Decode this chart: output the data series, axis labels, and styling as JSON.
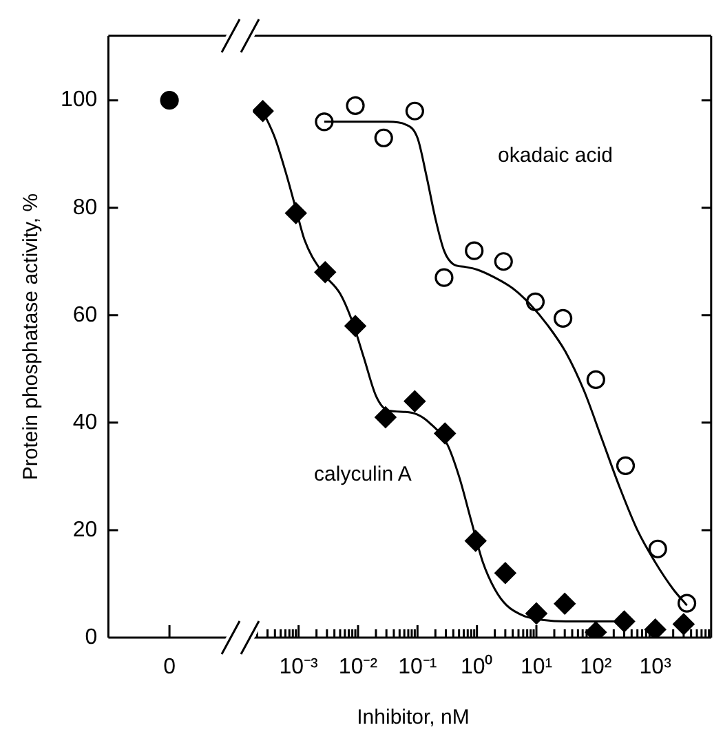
{
  "chart_data": [
    {
      "type": "scatter",
      "categories": [
        "0"
      ],
      "values": [
        100
      ],
      "color": "#000000",
      "marker": "circle",
      "ylabel": "Protein phosphatase activity, %",
      "ylim": [
        0,
        112
      ],
      "yticks": [
        0,
        20,
        40,
        60,
        80,
        100
      ],
      "grid": false,
      "legend": false
    },
    {
      "type": "scatter",
      "tick_labels": "x",
      "xlabel": "Inhibitor, nM",
      "log": "x",
      "grid": false,
      "legend": false,
      "xlim": [
        0.00017,
        8700
      ],
      "ylim": [
        0,
        112
      ],
      "yticks": [
        {
          "value": 0,
          "label": null
        },
        {
          "value": 20,
          "label": null
        },
        {
          "value": 40,
          "label": null
        },
        {
          "value": 60,
          "label": null
        },
        {
          "value": 80,
          "label": null
        },
        {
          "value": 100,
          "label": null
        }
      ],
      "xticks": [
        {
          "value": 0.0002,
          "label": null
        },
        {
          "value": 0.0003,
          "label": null
        },
        {
          "value": 0.0004,
          "label": null
        },
        {
          "value": 0.0005,
          "label": null
        },
        {
          "value": 0.0006,
          "label": null
        },
        {
          "value": 0.0007,
          "label": null
        },
        {
          "value": 0.0008,
          "label": null
        },
        {
          "value": 0.0009,
          "label": null
        },
        {
          "value": 0.001,
          "label": "10⁻³"
        },
        {
          "value": 0.002,
          "label": null
        },
        {
          "value": 0.003,
          "label": null
        },
        {
          "value": 0.004,
          "label": null
        },
        {
          "value": 0.005,
          "label": null
        },
        {
          "value": 0.006,
          "label": null
        },
        {
          "value": 0.007,
          "label": null
        },
        {
          "value": 0.008,
          "label": null
        },
        {
          "value": 0.009,
          "label": null
        },
        {
          "value": 0.01,
          "label": "10⁻²"
        },
        {
          "value": 0.02,
          "label": null
        },
        {
          "value": 0.03,
          "label": null
        },
        {
          "value": 0.04,
          "label": null
        },
        {
          "value": 0.05,
          "label": null
        },
        {
          "value": 0.06,
          "label": null
        },
        {
          "value": 0.07,
          "label": null
        },
        {
          "value": 0.08,
          "label": null
        },
        {
          "value": 0.09,
          "label": null
        },
        {
          "value": 0.1,
          "label": "10⁻¹"
        },
        {
          "value": 0.2,
          "label": null
        },
        {
          "value": 0.3,
          "label": null
        },
        {
          "value": 0.4,
          "label": null
        },
        {
          "value": 0.5,
          "label": null
        },
        {
          "value": 0.6,
          "label": null
        },
        {
          "value": 0.7,
          "label": null
        },
        {
          "value": 0.8,
          "label": null
        },
        {
          "value": 0.9,
          "label": null
        },
        {
          "value": 1,
          "label": "10⁰"
        },
        {
          "value": 2,
          "label": null
        },
        {
          "value": 3,
          "label": null
        },
        {
          "value": 4,
          "label": null
        },
        {
          "value": 5,
          "label": null
        },
        {
          "value": 6,
          "label": null
        },
        {
          "value": 7,
          "label": null
        },
        {
          "value": 8,
          "label": null
        },
        {
          "value": 9,
          "label": null
        },
        {
          "value": 10,
          "label": "10¹"
        },
        {
          "value": 20,
          "label": null
        },
        {
          "value": 30,
          "label": null
        },
        {
          "value": 40,
          "label": null
        },
        {
          "value": 50,
          "label": null
        },
        {
          "value": 60,
          "label": null
        },
        {
          "value": 70,
          "label": null
        },
        {
          "value": 80,
          "label": null
        },
        {
          "value": 90,
          "label": null
        },
        {
          "value": 100,
          "label": "10²"
        },
        {
          "value": 200,
          "label": null
        },
        {
          "value": 300,
          "label": null
        },
        {
          "value": 400,
          "label": null
        },
        {
          "value": 500,
          "label": null
        },
        {
          "value": 600,
          "label": null
        },
        {
          "value": 700,
          "label": null
        },
        {
          "value": 800,
          "label": null
        },
        {
          "value": 900,
          "label": null
        },
        {
          "value": 1000,
          "label": "10³"
        },
        {
          "value": 2000,
          "label": null
        },
        {
          "value": 3000,
          "label": null
        },
        {
          "value": 4000,
          "label": null
        },
        {
          "value": 5000,
          "label": null
        },
        {
          "value": 6000,
          "label": null
        },
        {
          "value": 7000,
          "label": null
        },
        {
          "value": 8000,
          "label": null
        }
      ],
      "series": [
        {
          "type": "line",
          "marker": "none",
          "color": "#000000",
          "x": [
            0.00025,
            0.0004,
            0.00063,
            0.00089,
            0.00126,
            0.0025,
            0.005,
            0.0079,
            0.0126,
            0.02,
            0.0316,
            0.063,
            0.1,
            0.158,
            0.316,
            0.5,
            0.79,
            1.26,
            2,
            3.16,
            6.3,
            12.6,
            31.6,
            100,
            316
          ],
          "values": [
            98,
            93,
            86,
            80,
            74,
            68,
            64,
            59,
            52,
            45,
            42.3,
            42,
            41.5,
            40,
            36,
            30,
            22,
            14,
            9,
            6,
            4,
            3.3,
            3,
            3,
            3
          ]
        },
        {
          "type": "line",
          "marker": "none",
          "color": "#000000",
          "x": [
            0.0027,
            0.01,
            0.0316,
            0.063,
            0.1,
            0.141,
            0.2,
            0.28,
            0.4,
            0.63,
            1,
            2,
            4,
            7.9,
            15.8,
            31.6,
            63,
            126,
            251,
            500,
            1000,
            2000,
            3400
          ],
          "values": [
            96,
            96,
            96,
            95.5,
            93,
            86,
            78,
            72,
            69.5,
            69,
            68.5,
            67,
            65,
            62,
            58,
            53,
            46,
            37,
            28,
            20,
            14,
            9,
            6
          ]
        },
        {
          "marker": "diamond",
          "color": "#000000",
          "x": [
            0.00025,
            0.0009,
            0.0028,
            0.009,
            0.029,
            0.09,
            0.29,
            0.95,
            3,
            10,
            30,
            100,
            300,
            1000,
            3000
          ],
          "values": [
            98,
            79,
            68,
            58,
            41,
            44,
            38,
            18,
            12,
            4.5,
            6.3,
            1,
            3,
            1.5,
            2.5
          ]
        },
        {
          "marker": "circle",
          "color": "#ffffff",
          "x": [
            0.0027,
            0.009,
            0.027,
            0.09,
            0.28,
            0.9,
            2.8,
            9.6,
            28,
            100,
            316,
            1100,
            3400
          ],
          "values": [
            96,
            99,
            93,
            98,
            67,
            72,
            70,
            62.5,
            59.4,
            48,
            32,
            16.5,
            6.4
          ]
        }
      ],
      "annotations": [
        "okadaic acid",
        "calyculin A"
      ]
    }
  ]
}
